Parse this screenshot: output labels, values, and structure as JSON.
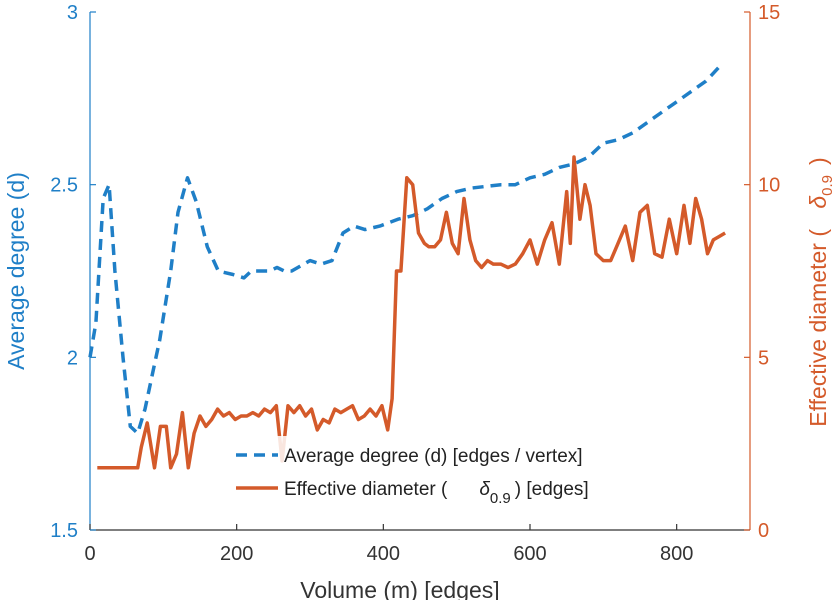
{
  "chart_data": {
    "type": "line",
    "xlabel": "Volume (m) [edges]",
    "ylabel_left": "Average degree (d)",
    "ylabel_right": "Effective diameter (",
    "ylabel_right_symbol": "δ",
    "ylabel_right_sub": "0.9",
    "ylabel_right_close": ")",
    "xlim": [
      0,
      900
    ],
    "ylim_left": [
      1.5,
      3
    ],
    "ylim_right": [
      0,
      15
    ],
    "xticks": [
      0,
      200,
      400,
      600,
      800
    ],
    "xtick_labels": [
      "0",
      "200",
      "400",
      "600",
      "800"
    ],
    "yticks_left": [
      1.5,
      2,
      2.5,
      3
    ],
    "ytick_labels_left": [
      "1.5",
      "2",
      "2.5",
      "3"
    ],
    "yticks_right": [
      0,
      5,
      10,
      15
    ],
    "ytick_labels_right": [
      "0",
      "5",
      "10",
      "15"
    ],
    "colors": {
      "left_axis": "#1f7fc7",
      "right_axis": "#d45a2a",
      "avg_degree": "#1f7fc7",
      "diameter": "#d45a2a"
    },
    "legend": {
      "placement": "bottom-center",
      "entries": [
        {
          "series": "avg_degree",
          "label": "Average degree (d) [edges / vertex]"
        },
        {
          "series": "diameter",
          "label_pre": "Effective diameter (",
          "symbol": "δ",
          "sub": "0.9",
          "label_post": ") [edges]"
        }
      ]
    },
    "series": [
      {
        "name": "Average degree (d) [edges / vertex]",
        "axis": "left",
        "style": "dashed",
        "x": [
          0,
          8,
          18,
          26,
          34,
          45,
          55,
          65,
          75,
          85,
          95,
          110,
          120,
          133,
          145,
          160,
          175,
          195,
          210,
          220,
          245,
          255,
          265,
          275,
          300,
          315,
          330,
          345,
          360,
          375,
          395,
          420,
          440,
          460,
          480,
          500,
          520,
          560,
          580,
          600,
          620,
          640,
          660,
          680,
          700,
          720,
          740,
          760,
          780,
          800,
          820,
          840,
          862
        ],
        "y": [
          2.0,
          2.1,
          2.46,
          2.5,
          2.25,
          2.0,
          1.8,
          1.78,
          1.85,
          1.95,
          2.05,
          2.25,
          2.42,
          2.52,
          2.45,
          2.32,
          2.25,
          2.24,
          2.23,
          2.25,
          2.25,
          2.26,
          2.25,
          2.25,
          2.28,
          2.27,
          2.28,
          2.36,
          2.38,
          2.37,
          2.38,
          2.4,
          2.41,
          2.43,
          2.46,
          2.48,
          2.49,
          2.5,
          2.5,
          2.52,
          2.53,
          2.55,
          2.56,
          2.58,
          2.62,
          2.63,
          2.65,
          2.68,
          2.71,
          2.74,
          2.77,
          2.8,
          2.85
        ]
      },
      {
        "name": "Effective diameter (δ0.9) [edges]",
        "axis": "right",
        "style": "solid",
        "x": [
          10,
          20,
          30,
          40,
          50,
          60,
          65,
          70,
          78,
          88,
          96,
          104,
          110,
          118,
          126,
          134,
          142,
          150,
          158,
          166,
          174,
          182,
          190,
          198,
          206,
          214,
          222,
          230,
          238,
          246,
          254,
          262,
          270,
          278,
          286,
          294,
          302,
          310,
          318,
          326,
          334,
          342,
          350,
          358,
          366,
          374,
          382,
          390,
          398,
          406,
          412,
          418,
          424,
          432,
          440,
          448,
          456,
          462,
          470,
          478,
          486,
          494,
          502,
          510,
          518,
          526,
          534,
          542,
          550,
          560,
          570,
          580,
          590,
          600,
          610,
          620,
          630,
          640,
          650,
          655,
          660,
          668,
          675,
          682,
          690,
          700,
          710,
          720,
          730,
          740,
          750,
          760,
          770,
          780,
          790,
          800,
          810,
          818,
          826,
          834,
          842,
          850,
          858,
          866
        ],
        "y": [
          1.8,
          1.8,
          1.8,
          1.8,
          1.8,
          1.8,
          1.8,
          2.4,
          3.1,
          1.8,
          3.0,
          3.0,
          1.8,
          2.2,
          3.4,
          1.8,
          2.8,
          3.3,
          3.0,
          3.2,
          3.5,
          3.3,
          3.4,
          3.2,
          3.3,
          3.3,
          3.4,
          3.3,
          3.5,
          3.4,
          3.6,
          2.0,
          3.6,
          3.4,
          3.6,
          3.3,
          3.5,
          2.9,
          3.2,
          3.1,
          3.5,
          3.4,
          3.5,
          3.6,
          3.2,
          3.3,
          3.5,
          3.3,
          3.6,
          2.9,
          3.8,
          7.5,
          7.5,
          10.2,
          10.0,
          8.6,
          8.3,
          8.2,
          8.2,
          8.4,
          9.2,
          8.3,
          8.0,
          9.6,
          8.4,
          7.8,
          7.6,
          7.8,
          7.7,
          7.7,
          7.6,
          7.7,
          8.0,
          8.4,
          7.7,
          8.4,
          8.9,
          7.7,
          9.8,
          8.3,
          10.8,
          9.0,
          10.0,
          9.4,
          8.0,
          7.8,
          7.8,
          8.3,
          8.8,
          7.8,
          9.2,
          9.4,
          8.0,
          7.9,
          9.0,
          8.0,
          9.4,
          8.3,
          9.6,
          9.0,
          8.0,
          8.4,
          8.5,
          8.6
        ]
      }
    ]
  }
}
